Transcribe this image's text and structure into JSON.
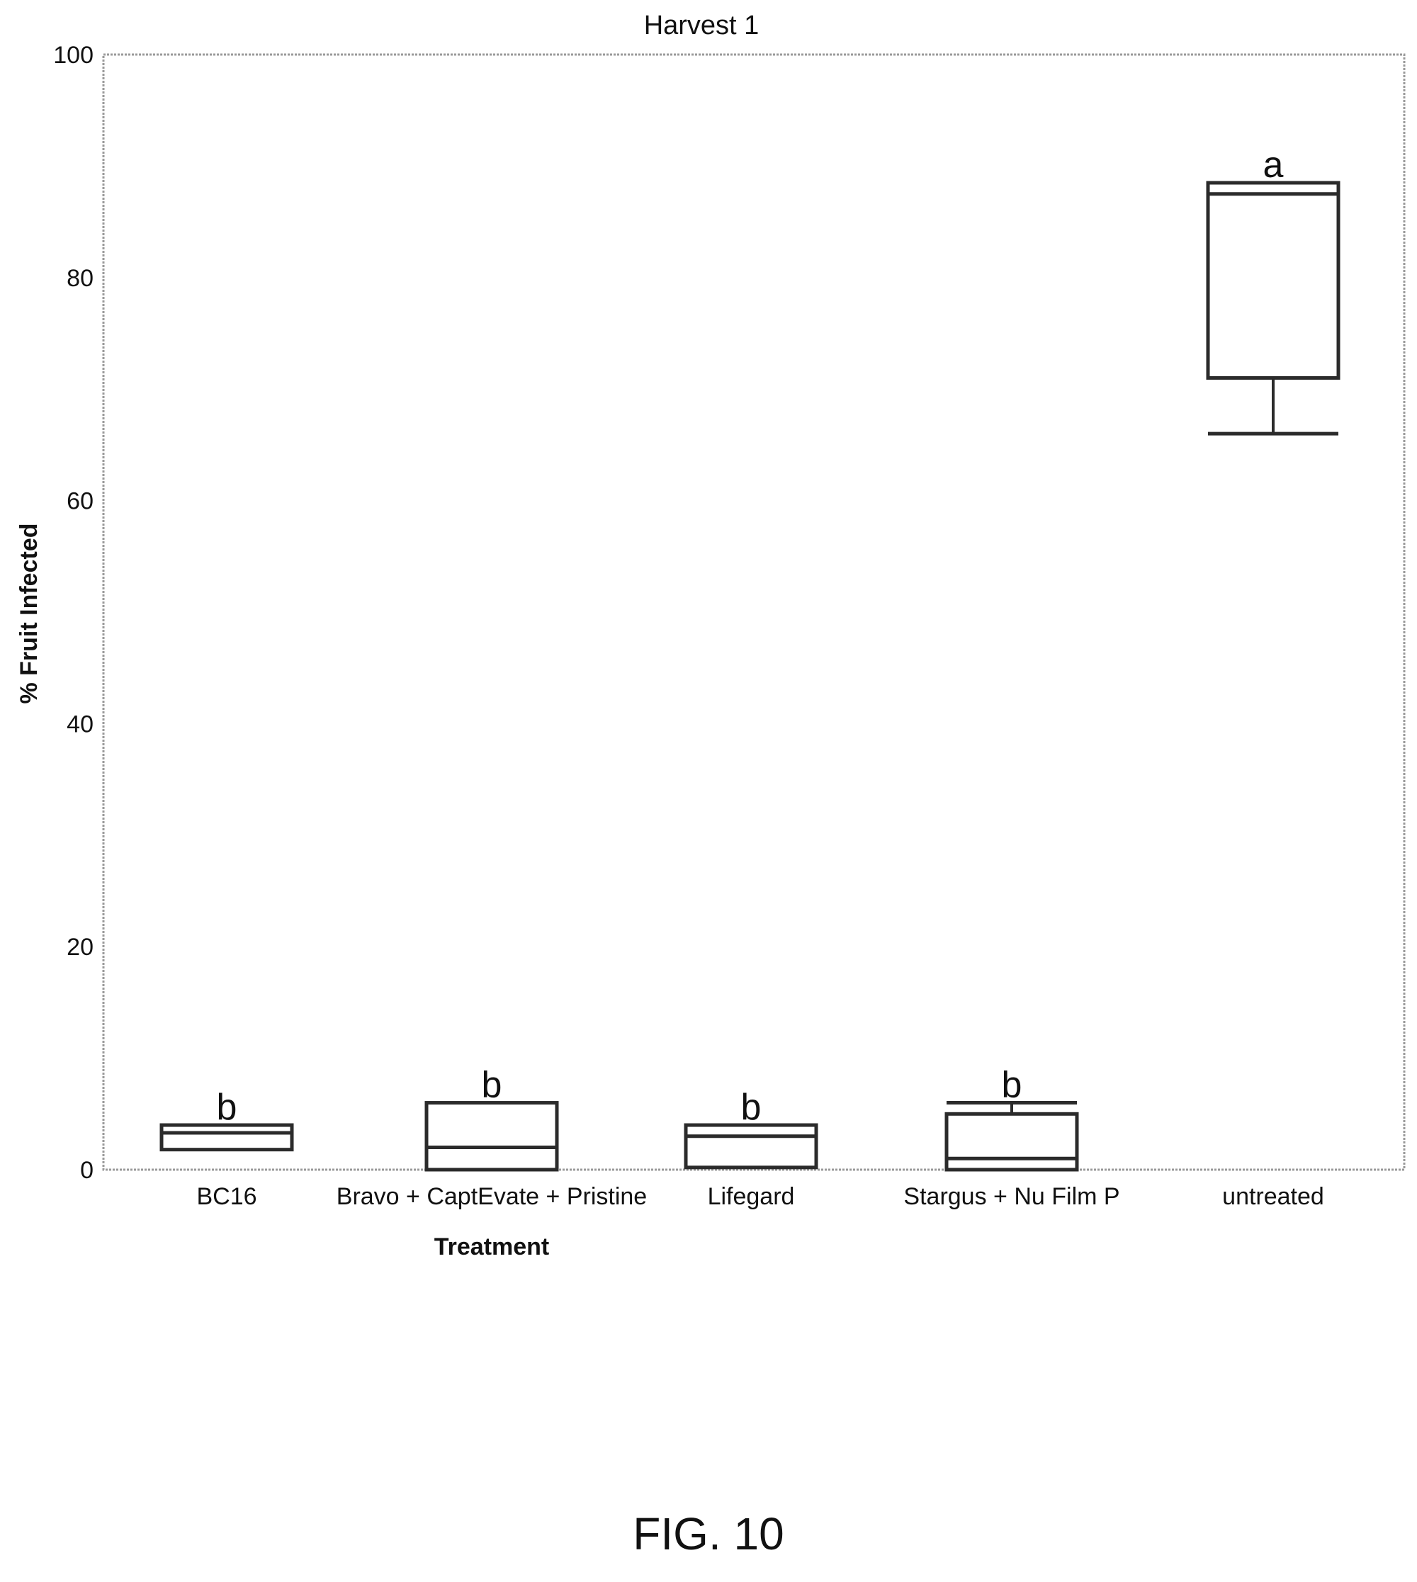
{
  "figure_label": "FIG. 10",
  "chart_data": {
    "type": "box",
    "title": "Harvest 1",
    "xlabel": "Treatment",
    "ylabel": "% Fruit Infected",
    "ylim": [
      0,
      100
    ],
    "yticks": [
      0,
      20,
      40,
      60,
      80,
      100
    ],
    "grid": false,
    "categories": [
      "BC16",
      "Bravo + CaptEvate + Pristine",
      "Lifegard",
      "Stargus + Nu Film P",
      "untreated"
    ],
    "boxes": [
      {
        "category": "BC16",
        "min": 1.8,
        "q1": 1.8,
        "median": 3.3,
        "q3": 4.0,
        "max": 4.0,
        "group": "b"
      },
      {
        "category": "Bravo + CaptEvate + Pristine",
        "min": 0.0,
        "q1": 0.0,
        "median": 2.0,
        "q3": 6.0,
        "max": 6.0,
        "group": "b"
      },
      {
        "category": "Lifegard",
        "min": 0.2,
        "q1": 0.2,
        "median": 3.0,
        "q3": 4.0,
        "max": 4.0,
        "group": "b"
      },
      {
        "category": "Stargus + Nu Film P",
        "min": 0.0,
        "q1": 0.0,
        "median": 1.0,
        "q3": 5.0,
        "max": 6.0,
        "group": "b"
      },
      {
        "category": "untreated",
        "min": 66.0,
        "q1": 71.0,
        "median": 87.5,
        "q3": 88.5,
        "max": 88.5,
        "group": "a"
      }
    ],
    "colors": {
      "stroke": "#2b2b2b",
      "frame": "#9a9a9a",
      "text": "#111111"
    }
  }
}
